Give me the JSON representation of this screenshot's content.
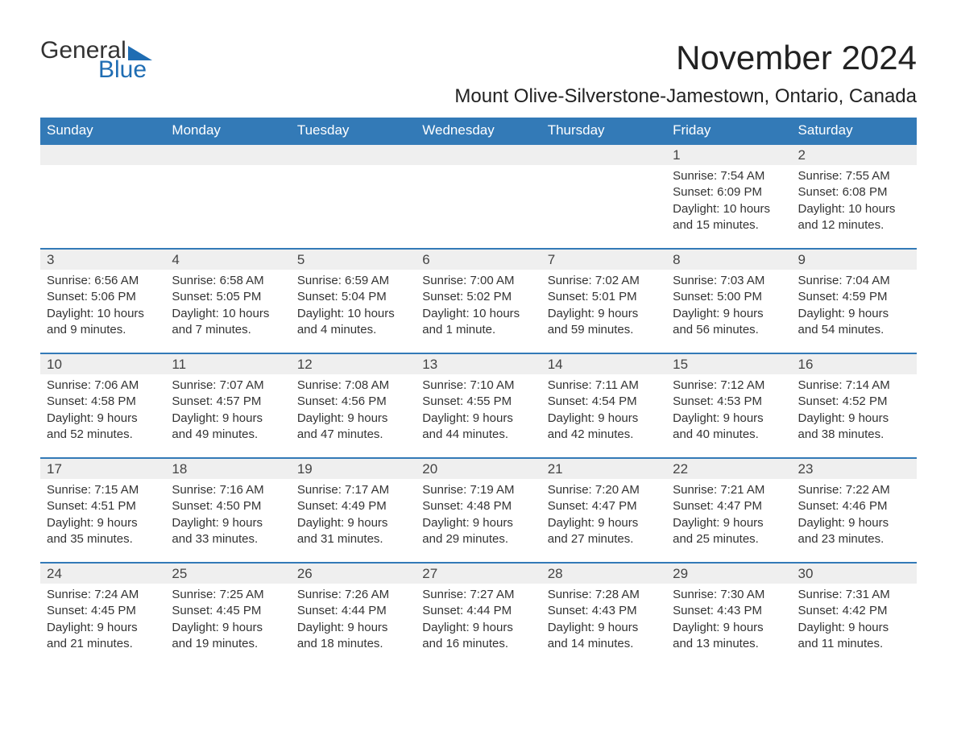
{
  "logo": {
    "word1": "General",
    "word2": "Blue"
  },
  "title": "November 2024",
  "location": "Mount Olive-Silverstone-Jamestown, Ontario, Canada",
  "header_bg": "#337ab7",
  "header_fg": "#ffffff",
  "daynum_bg": "#efefef",
  "rule_color": "#337ab7",
  "weekdays": [
    "Sunday",
    "Monday",
    "Tuesday",
    "Wednesday",
    "Thursday",
    "Friday",
    "Saturday"
  ],
  "labels": {
    "sunrise": "Sunrise:",
    "sunset": "Sunset:",
    "daylight": "Daylight:"
  },
  "weeks": [
    [
      null,
      null,
      null,
      null,
      null,
      {
        "n": "1",
        "sr": "7:54 AM",
        "ss": "6:09 PM",
        "dl": "10 hours and 15 minutes."
      },
      {
        "n": "2",
        "sr": "7:55 AM",
        "ss": "6:08 PM",
        "dl": "10 hours and 12 minutes."
      }
    ],
    [
      {
        "n": "3",
        "sr": "6:56 AM",
        "ss": "5:06 PM",
        "dl": "10 hours and 9 minutes."
      },
      {
        "n": "4",
        "sr": "6:58 AM",
        "ss": "5:05 PM",
        "dl": "10 hours and 7 minutes."
      },
      {
        "n": "5",
        "sr": "6:59 AM",
        "ss": "5:04 PM",
        "dl": "10 hours and 4 minutes."
      },
      {
        "n": "6",
        "sr": "7:00 AM",
        "ss": "5:02 PM",
        "dl": "10 hours and 1 minute."
      },
      {
        "n": "7",
        "sr": "7:02 AM",
        "ss": "5:01 PM",
        "dl": "9 hours and 59 minutes."
      },
      {
        "n": "8",
        "sr": "7:03 AM",
        "ss": "5:00 PM",
        "dl": "9 hours and 56 minutes."
      },
      {
        "n": "9",
        "sr": "7:04 AM",
        "ss": "4:59 PM",
        "dl": "9 hours and 54 minutes."
      }
    ],
    [
      {
        "n": "10",
        "sr": "7:06 AM",
        "ss": "4:58 PM",
        "dl": "9 hours and 52 minutes."
      },
      {
        "n": "11",
        "sr": "7:07 AM",
        "ss": "4:57 PM",
        "dl": "9 hours and 49 minutes."
      },
      {
        "n": "12",
        "sr": "7:08 AM",
        "ss": "4:56 PM",
        "dl": "9 hours and 47 minutes."
      },
      {
        "n": "13",
        "sr": "7:10 AM",
        "ss": "4:55 PM",
        "dl": "9 hours and 44 minutes."
      },
      {
        "n": "14",
        "sr": "7:11 AM",
        "ss": "4:54 PM",
        "dl": "9 hours and 42 minutes."
      },
      {
        "n": "15",
        "sr": "7:12 AM",
        "ss": "4:53 PM",
        "dl": "9 hours and 40 minutes."
      },
      {
        "n": "16",
        "sr": "7:14 AM",
        "ss": "4:52 PM",
        "dl": "9 hours and 38 minutes."
      }
    ],
    [
      {
        "n": "17",
        "sr": "7:15 AM",
        "ss": "4:51 PM",
        "dl": "9 hours and 35 minutes."
      },
      {
        "n": "18",
        "sr": "7:16 AM",
        "ss": "4:50 PM",
        "dl": "9 hours and 33 minutes."
      },
      {
        "n": "19",
        "sr": "7:17 AM",
        "ss": "4:49 PM",
        "dl": "9 hours and 31 minutes."
      },
      {
        "n": "20",
        "sr": "7:19 AM",
        "ss": "4:48 PM",
        "dl": "9 hours and 29 minutes."
      },
      {
        "n": "21",
        "sr": "7:20 AM",
        "ss": "4:47 PM",
        "dl": "9 hours and 27 minutes."
      },
      {
        "n": "22",
        "sr": "7:21 AM",
        "ss": "4:47 PM",
        "dl": "9 hours and 25 minutes."
      },
      {
        "n": "23",
        "sr": "7:22 AM",
        "ss": "4:46 PM",
        "dl": "9 hours and 23 minutes."
      }
    ],
    [
      {
        "n": "24",
        "sr": "7:24 AM",
        "ss": "4:45 PM",
        "dl": "9 hours and 21 minutes."
      },
      {
        "n": "25",
        "sr": "7:25 AM",
        "ss": "4:45 PM",
        "dl": "9 hours and 19 minutes."
      },
      {
        "n": "26",
        "sr": "7:26 AM",
        "ss": "4:44 PM",
        "dl": "9 hours and 18 minutes."
      },
      {
        "n": "27",
        "sr": "7:27 AM",
        "ss": "4:44 PM",
        "dl": "9 hours and 16 minutes."
      },
      {
        "n": "28",
        "sr": "7:28 AM",
        "ss": "4:43 PM",
        "dl": "9 hours and 14 minutes."
      },
      {
        "n": "29",
        "sr": "7:30 AM",
        "ss": "4:43 PM",
        "dl": "9 hours and 13 minutes."
      },
      {
        "n": "30",
        "sr": "7:31 AM",
        "ss": "4:42 PM",
        "dl": "9 hours and 11 minutes."
      }
    ]
  ]
}
